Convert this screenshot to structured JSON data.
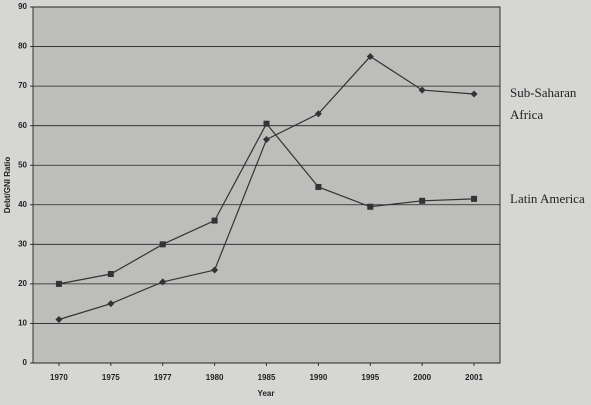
{
  "chart_data": {
    "type": "line",
    "xlabel": "Year",
    "ylabel": "Debt/GNI Ratio",
    "categories": [
      "1970",
      "1975",
      "1977",
      "1980",
      "1985",
      "1990",
      "1995",
      "2000",
      "2001"
    ],
    "series": [
      {
        "name": "Sub-Saharan Africa",
        "color": "#333333",
        "marker": "diamond",
        "values": [
          11,
          15,
          20.5,
          23.5,
          56.5,
          63,
          77.5,
          69,
          68
        ]
      },
      {
        "name": "Latin America",
        "color": "#333333",
        "marker": "square",
        "values": [
          20,
          22.5,
          30,
          36,
          60.5,
          44.5,
          39.5,
          41,
          41.5
        ]
      }
    ],
    "ylim": [
      0,
      90
    ],
    "yticks": [
      0,
      10,
      20,
      30,
      40,
      50,
      60,
      70,
      80,
      90
    ],
    "grid": true
  }
}
